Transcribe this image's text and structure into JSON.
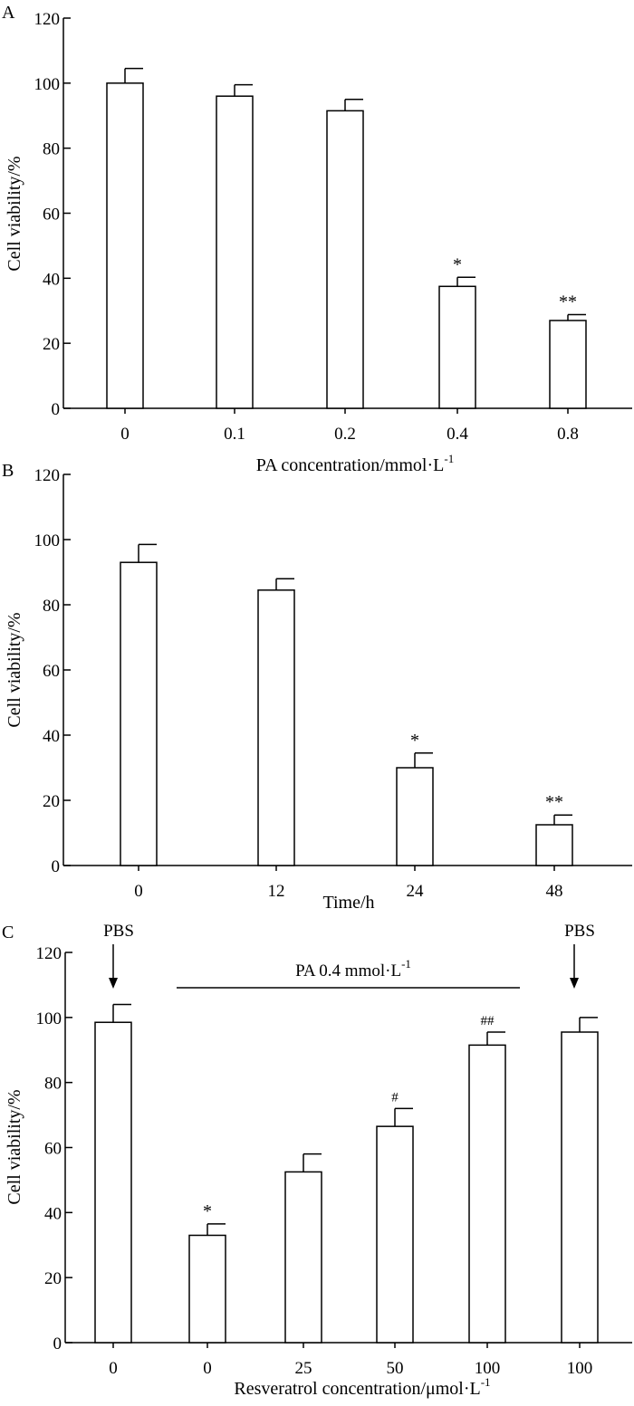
{
  "chart_data": [
    {
      "panel": "A",
      "type": "bar",
      "categories": [
        "0",
        "0.1",
        "0.2",
        "0.4",
        "0.8"
      ],
      "values": [
        100,
        96,
        91.5,
        37.5,
        27
      ],
      "errors": [
        4.5,
        3.5,
        3.5,
        2.8,
        1.8
      ],
      "significance": [
        "",
        "",
        "",
        "*",
        "**"
      ],
      "xlabel_prefix": "PA concentration/mmol·L",
      "xlabel_sup": "-1",
      "ylabel": "Cell viability/%",
      "ylim": [
        0,
        120
      ],
      "yticks": [
        "0",
        "20",
        "40",
        "60",
        "80",
        "100",
        "120"
      ]
    },
    {
      "panel": "B",
      "type": "bar",
      "categories": [
        "0",
        "12",
        "24",
        "48"
      ],
      "values": [
        93,
        84.5,
        30,
        12.5
      ],
      "errors": [
        5.5,
        3.5,
        4.5,
        3
      ],
      "significance": [
        "",
        "",
        "*",
        "**"
      ],
      "xlabel_prefix": "Time/h",
      "xlabel_sup": "",
      "ylabel": "Cell viability/%",
      "ylim": [
        0,
        120
      ],
      "yticks": [
        "0",
        "20",
        "40",
        "60",
        "80",
        "100",
        "120"
      ]
    },
    {
      "panel": "C",
      "type": "bar",
      "categories": [
        "0",
        "0",
        "25",
        "50",
        "100",
        "100"
      ],
      "values": [
        98.5,
        33,
        52.5,
        66.5,
        91.5,
        95.5
      ],
      "errors": [
        5.5,
        3.5,
        5.5,
        5.5,
        4,
        4.5
      ],
      "significance": [
        "",
        "*",
        "",
        "#",
        "##",
        ""
      ],
      "xlabel_prefix": "Resveratrol concentration/μmol·L",
      "xlabel_sup": "-1",
      "ylabel": "Cell viability/%",
      "ylim": [
        0,
        120
      ],
      "yticks": [
        "0",
        "20",
        "40",
        "60",
        "80",
        "100",
        "120"
      ],
      "annotations": {
        "pbs_left": "PBS",
        "pbs_right": "PBS",
        "pa_bar_prefix": "PA 0.4 mmol·L",
        "pa_bar_sup": "-1"
      }
    }
  ]
}
